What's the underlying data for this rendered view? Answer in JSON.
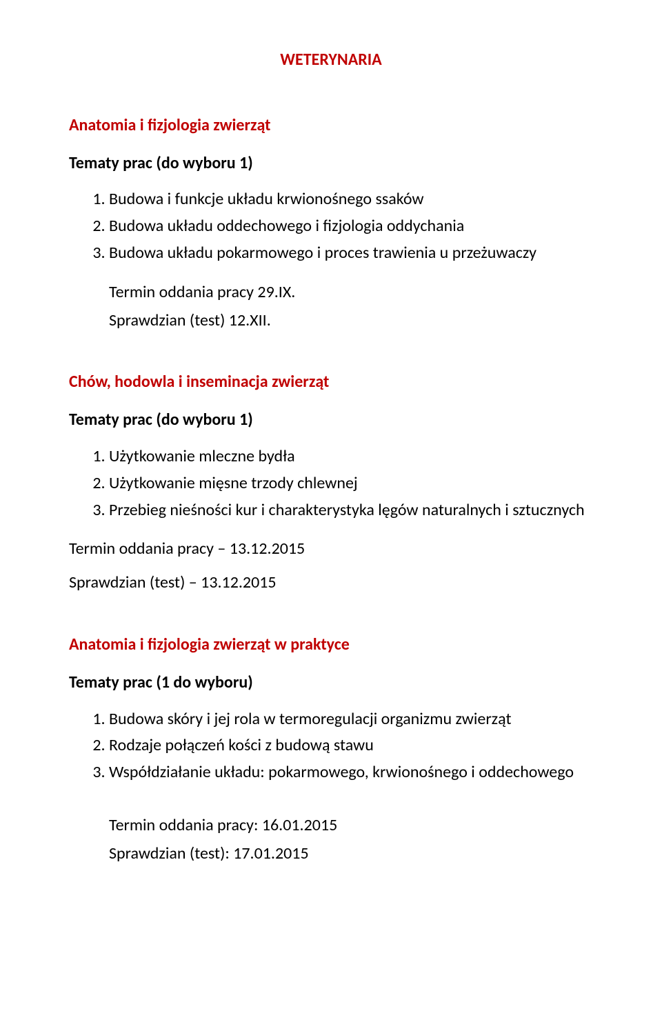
{
  "colors": {
    "heading": "#c00000",
    "body_text": "#000000",
    "background": "#ffffff"
  },
  "typography": {
    "base_fontsize_pt": 18,
    "heading_weight": "bold"
  },
  "page_title": "WETERYNARIA",
  "sections": [
    {
      "heading": "Anatomia i fizjologia zwierząt",
      "topics_label": "Tematy prac (do wyboru 1)",
      "items": [
        "Budowa i funkcje układu krwionośnego ssaków",
        "Budowa układu oddechowego i fizjologia oddychania",
        "Budowa układu pokarmowego i proces trawienia u przeżuwaczy"
      ],
      "deadline": "Termin oddania pracy 29.IX.",
      "test": "Sprawdzian (test) 12.XII.",
      "indent_footer": true
    },
    {
      "heading": "Chów, hodowla i inseminacja zwierząt",
      "topics_label": "Tematy prac (do wyboru 1)",
      "items": [
        "Użytkowanie mleczne bydła",
        "Użytkowanie mięsne trzody chlewnej",
        "Przebieg nieśności kur i charakterystyka lęgów naturalnych i sztucznych"
      ],
      "deadline": "Termin oddania pracy – 13.12.2015",
      "test": "Sprawdzian (test) – 13.12.2015",
      "indent_footer": false
    },
    {
      "heading": "Anatomia i fizjologia zwierząt w praktyce",
      "topics_label": "Tematy prac (1 do wyboru)",
      "items": [
        "Budowa skóry i jej rola w termoregulacji organizmu zwierząt",
        "Rodzaje połączeń kości z budową stawu",
        "Współdziałanie układu: pokarmowego, krwionośnego i oddechowego"
      ],
      "deadline": "Termin oddania pracy: 16.01.2015",
      "test": "Sprawdzian (test): 17.01.2015",
      "indent_footer": true
    }
  ]
}
